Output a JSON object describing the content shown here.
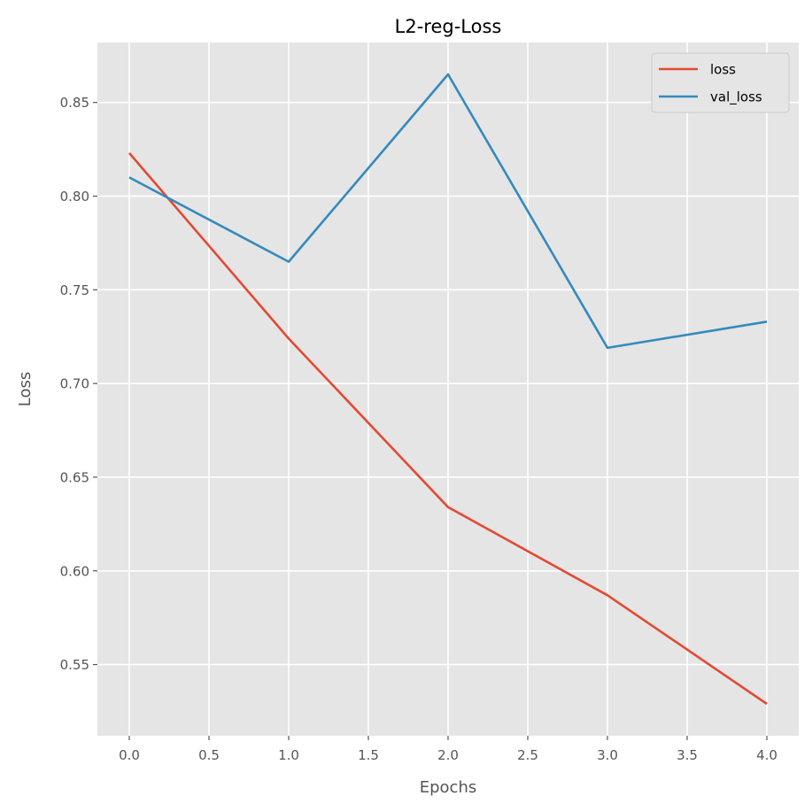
{
  "chart_data": {
    "type": "line",
    "title": "L2-reg-Loss",
    "xlabel": "Epochs",
    "ylabel": "Loss",
    "x": [
      0,
      1,
      2,
      3,
      4
    ],
    "xticks": [
      "0.0",
      "0.5",
      "1.0",
      "1.5",
      "2.0",
      "2.5",
      "3.0",
      "3.5",
      "4.0"
    ],
    "yticks": [
      "0.55",
      "0.60",
      "0.65",
      "0.70",
      "0.75",
      "0.80",
      "0.85"
    ],
    "xlim": [
      -0.2,
      4.2
    ],
    "ylim": [
      0.512,
      0.882
    ],
    "grid": true,
    "legend_position": "top-right",
    "series": [
      {
        "name": "loss",
        "color": "#E24A33",
        "values": [
          0.823,
          0.724,
          0.634,
          0.587,
          0.529
        ]
      },
      {
        "name": "val_loss",
        "color": "#348ABD",
        "values": [
          0.81,
          0.765,
          0.865,
          0.719,
          0.733
        ]
      }
    ],
    "colors": {
      "plot_background": "#E5E5E5",
      "grid": "#FFFFFF",
      "text": "#555555"
    }
  }
}
